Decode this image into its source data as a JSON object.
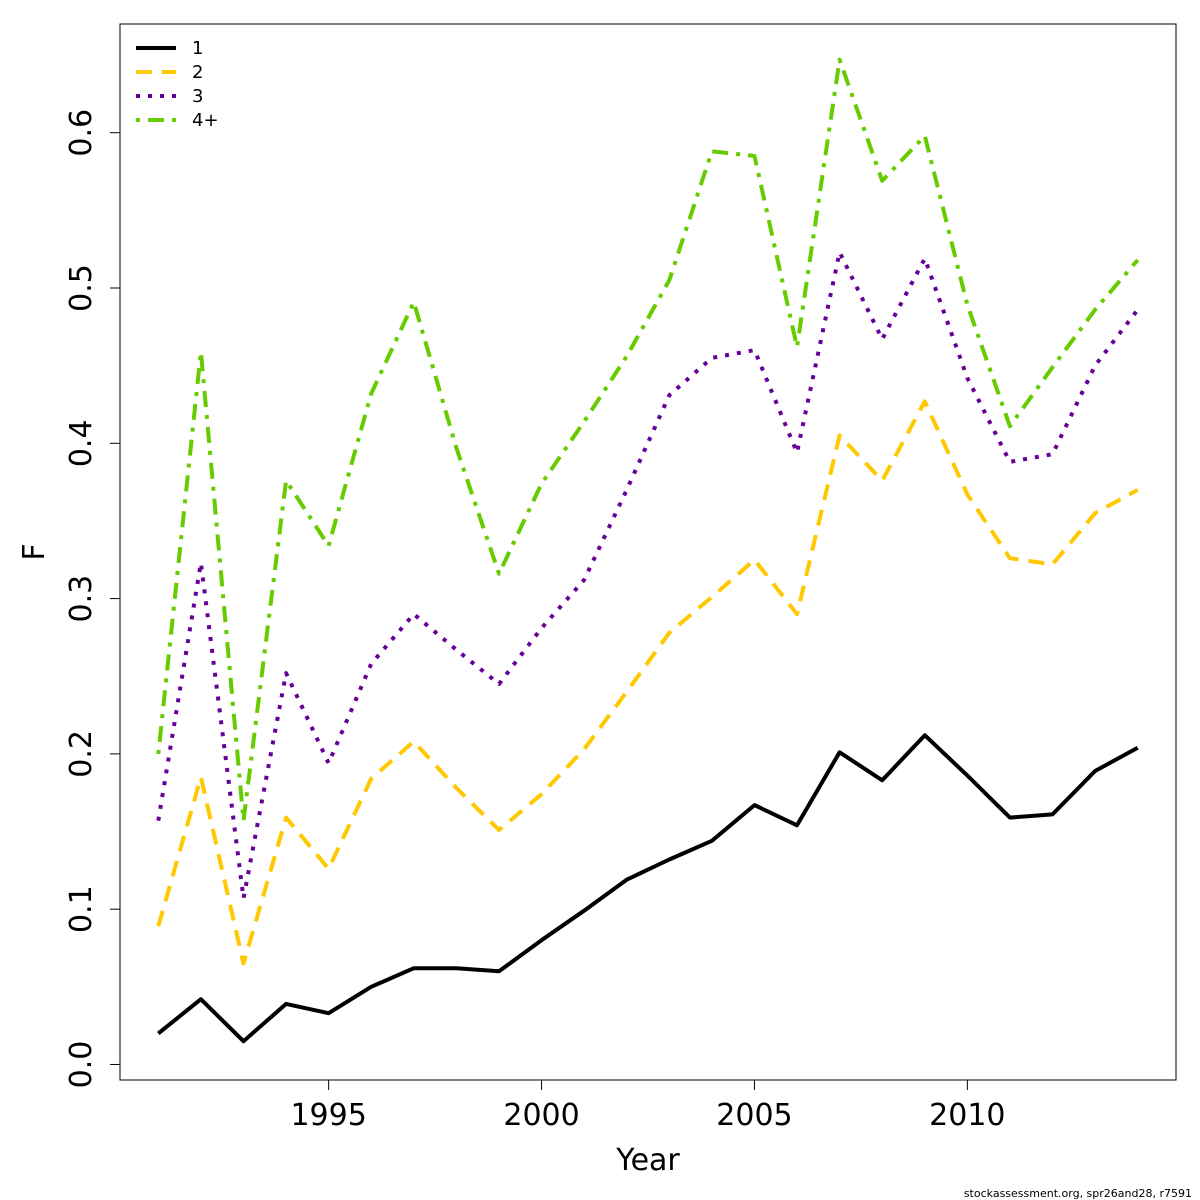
{
  "chart_data": {
    "type": "line",
    "title": "",
    "xlabel": "Year",
    "ylabel": "F",
    "xlim": [
      1990.1,
      2014.9
    ],
    "ylim": [
      -0.01,
      0.67
    ],
    "grid": false,
    "legend_position": "top-left",
    "x": [
      1991,
      1992,
      1993,
      1994,
      1995,
      1996,
      1997,
      1998,
      1999,
      2000,
      2001,
      2002,
      2003,
      2004,
      2005,
      2006,
      2007,
      2008,
      2009,
      2010,
      2011,
      2012,
      2013,
      2014
    ],
    "x_ticks": [
      1995,
      2000,
      2005,
      2010
    ],
    "y_ticks": [
      0.0,
      0.1,
      0.2,
      0.3,
      0.4,
      0.5,
      0.6
    ],
    "y_tick_labels": [
      "0.0",
      "0.1",
      "0.2",
      "0.3",
      "0.4",
      "0.5",
      "0.6"
    ],
    "series": [
      {
        "name": "1",
        "color": "#000000",
        "dash": "solid",
        "values": [
          0.02,
          0.042,
          0.015,
          0.039,
          0.033,
          0.05,
          0.062,
          0.062,
          0.06,
          0.08,
          0.099,
          0.119,
          0.132,
          0.144,
          0.167,
          0.154,
          0.201,
          0.183,
          0.212,
          0.186,
          0.159,
          0.161,
          0.189,
          0.204
        ]
      },
      {
        "name": "2",
        "color": "#FFC800",
        "dash": "dashed",
        "values": [
          0.089,
          0.185,
          0.065,
          0.159,
          0.126,
          0.184,
          0.208,
          0.178,
          0.151,
          0.174,
          0.203,
          0.24,
          0.278,
          0.301,
          0.325,
          0.29,
          0.405,
          0.376,
          0.427,
          0.367,
          0.326,
          0.322,
          0.355,
          0.37
        ]
      },
      {
        "name": "3",
        "color": "#660099",
        "dash": "dotted",
        "values": [
          0.157,
          0.323,
          0.107,
          0.252,
          0.194,
          0.258,
          0.29,
          0.267,
          0.245,
          0.281,
          0.312,
          0.37,
          0.431,
          0.455,
          0.46,
          0.394,
          0.523,
          0.467,
          0.519,
          0.442,
          0.388,
          0.393,
          0.45,
          0.486
        ]
      },
      {
        "name": "4+",
        "color": "#66CC00",
        "dash": "dotdash",
        "values": [
          0.2,
          0.459,
          0.157,
          0.376,
          0.334,
          0.432,
          0.491,
          0.397,
          0.316,
          0.374,
          0.414,
          0.456,
          0.505,
          0.588,
          0.585,
          0.462,
          0.647,
          0.569,
          0.598,
          0.489,
          0.411,
          0.449,
          0.486,
          0.518
        ]
      }
    ]
  },
  "credit": "stockassessment.org, spr26and28, r7591"
}
